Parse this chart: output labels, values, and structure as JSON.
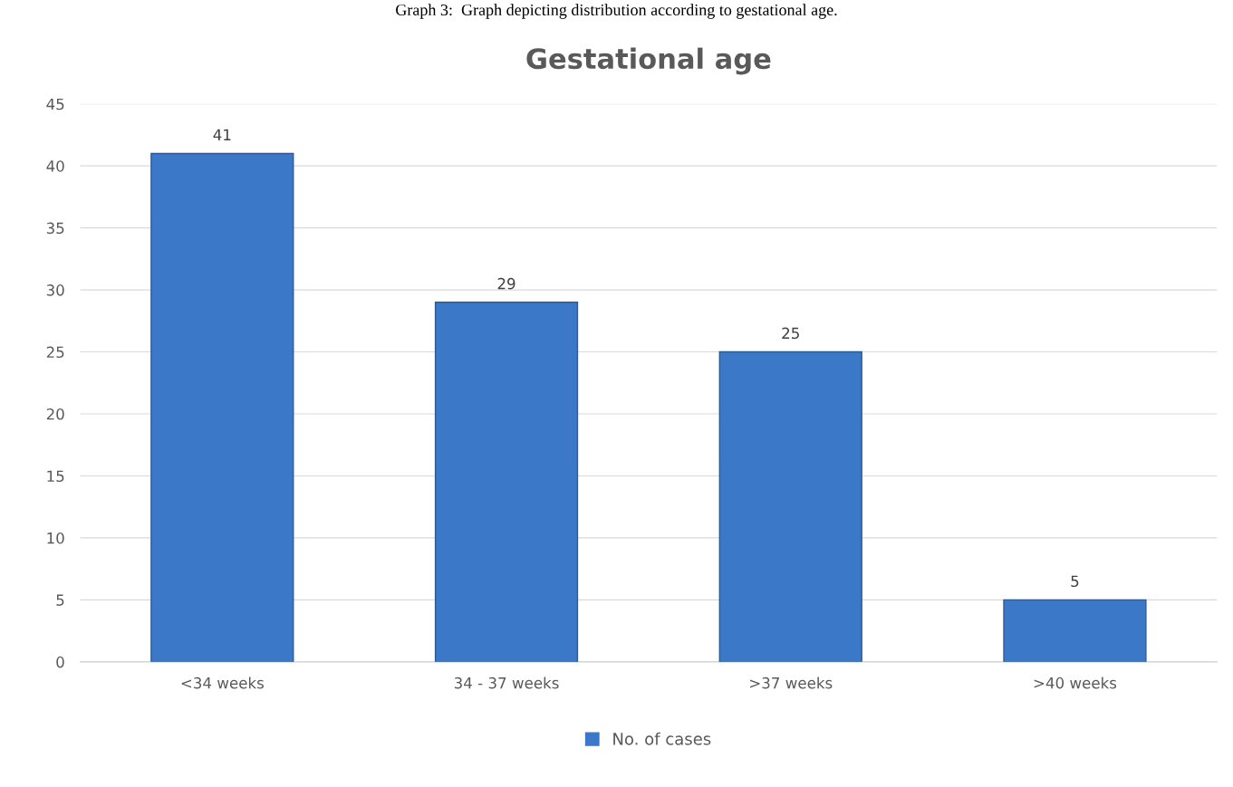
{
  "chart_data": {
    "type": "bar",
    "title": "Gestational age",
    "annotations": [
      "Graph 3:  Graph depicting distribution according to gestational age."
    ],
    "categories": [
      "<34 weeks",
      "34 - 37 weeks",
      ">37 weeks",
      ">40 weeks"
    ],
    "series": [
      {
        "name": "No. of cases",
        "color": "#3c78c8",
        "values": [
          41,
          29,
          25,
          5
        ]
      }
    ],
    "ylim": [
      0,
      45
    ],
    "yticks": [
      0,
      5,
      10,
      15,
      20,
      25,
      30,
      35,
      40,
      45
    ],
    "grid": "y",
    "legend": "bottom",
    "data_labels": true
  }
}
